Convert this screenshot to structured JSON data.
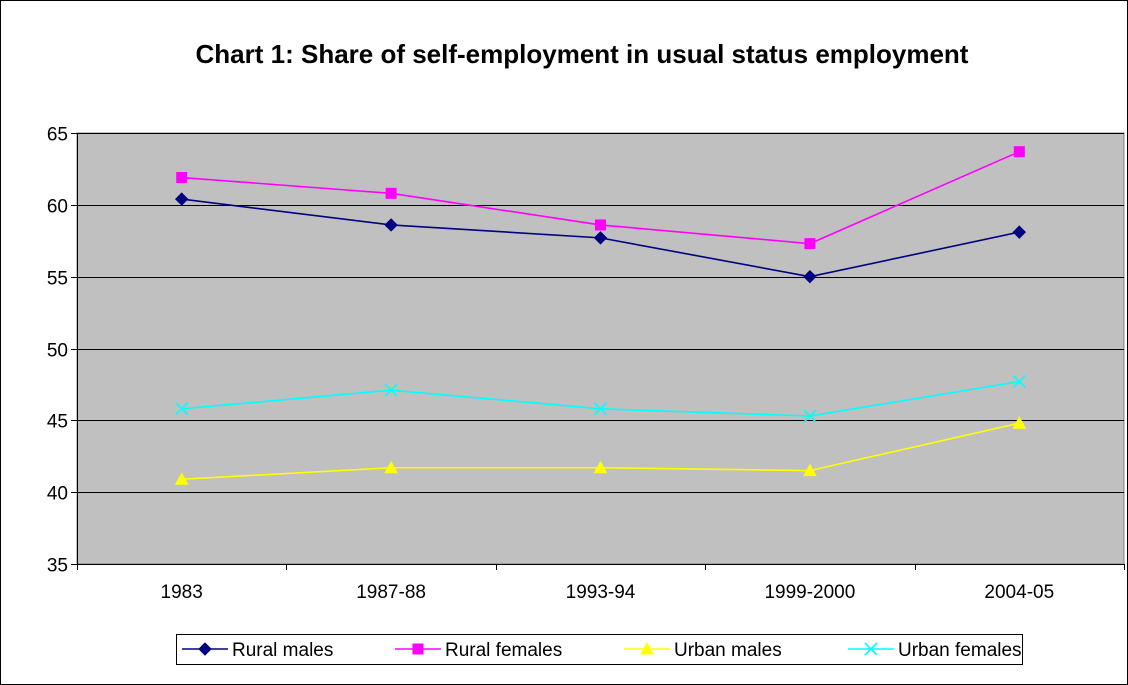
{
  "chart_data": {
    "type": "line",
    "title": "Chart 1: Share of self-employment in usual status employment",
    "xlabel": "",
    "ylabel": "",
    "categories": [
      "1983",
      "1987-88",
      "1993-94",
      "1999-2000",
      "2004-05"
    ],
    "ylim": [
      35,
      65
    ],
    "yticks": [
      "35",
      "40",
      "45",
      "50",
      "55",
      "60",
      "65"
    ],
    "grid": "horizontal major gridlines",
    "plot_background": "#C0C0C0",
    "legend_position": "bottom",
    "series": [
      {
        "name": "Rural males",
        "values": [
          60.4,
          58.6,
          57.7,
          55.0,
          58.1
        ],
        "color": "#000080",
        "marker": "diamond"
      },
      {
        "name": "Rural females",
        "values": [
          61.9,
          60.8,
          58.6,
          57.3,
          63.7
        ],
        "color": "#FF00FF",
        "marker": "square"
      },
      {
        "name": "Urban males",
        "values": [
          40.9,
          41.7,
          41.7,
          41.5,
          44.8
        ],
        "color": "#FFFF00",
        "marker": "triangle"
      },
      {
        "name": "Urban females",
        "values": [
          45.8,
          47.1,
          45.8,
          45.3,
          47.7
        ],
        "color": "#00FFFF",
        "marker": "x"
      }
    ]
  }
}
